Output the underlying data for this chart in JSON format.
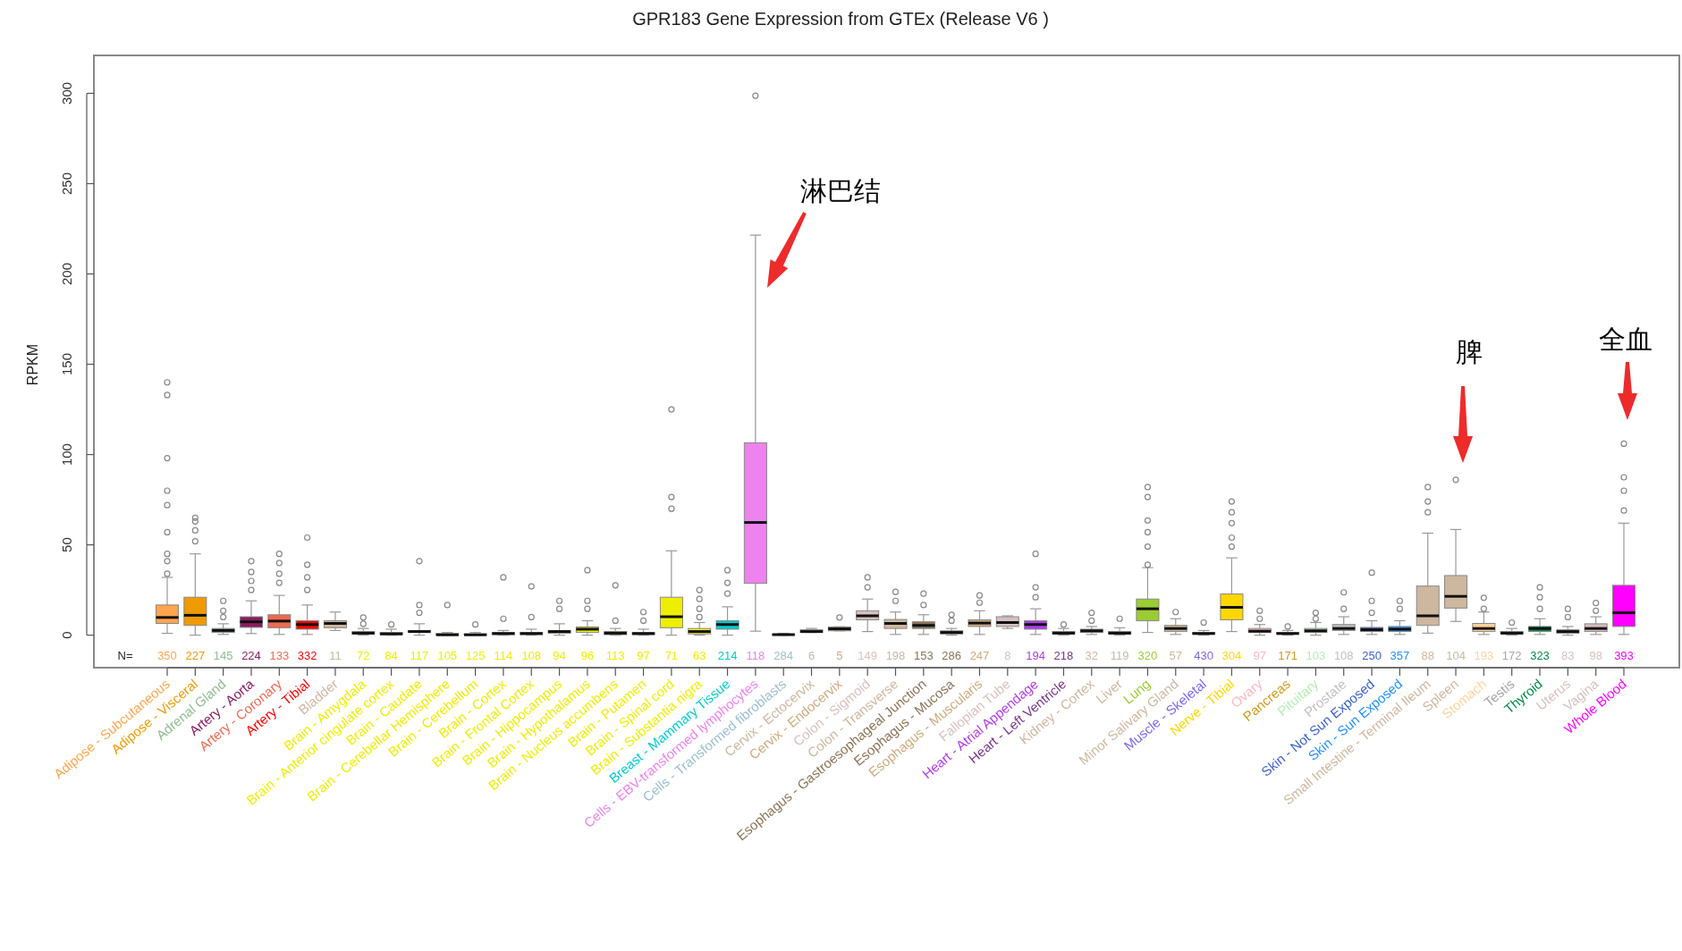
{
  "chart_data": {
    "type": "box",
    "title": "GPR183 Gene Expression from GTEx (Release  V6 )",
    "ylabel": "RPKM",
    "categories": [
      "Adipose - Subcutaneous",
      "Adipose - Visceral",
      "Adrenal Gland",
      "Artery - Aorta",
      "Artery - Coronary",
      "Artery - Tibial",
      "Bladder",
      "Brain - Amygdala",
      "Brain - Anterior cingulate cortex",
      "Brain - Caudate",
      "Brain - Cerebellar Hemisphere",
      "Brain - Cerebellum",
      "Brain - Cortex",
      "Brain - Frontal Cortex",
      "Brain - Hippocampus",
      "Brain - Hypothalamus",
      "Brain - Nucleus accumbens",
      "Brain - Putamen",
      "Brain - Spinal cord",
      "Brain - Substantia nigra",
      "Breast - Mammary Tissue",
      "Cells - EBV-transformed lymphocytes",
      "Cells - Transformed fibroblasts",
      "Cervix - Ectocervix",
      "Cervix - Endocervix",
      "Colon - Sigmoid",
      "Colon - Transverse",
      "Esophagus - Gastroesophageal Junction",
      "Esophagus - Mucosa",
      "Esophagus - Muscularis",
      "Fallopian Tube",
      "Heart - Atrial Appendage",
      "Heart - Left Ventricle",
      "Kidney - Cortex",
      "Liver",
      "Lung",
      "Minor Salivary Gland",
      "Muscle - Skeletal",
      "Nerve - Tibial",
      "Ovary",
      "Pancreas",
      "Pituitary",
      "Prostate",
      "Skin - Not Sun Exposed",
      "Skin - Sun Exposed",
      "Small Intestine - Terminal Ileum",
      "Spleen",
      "Stomach",
      "Testis",
      "Thyroid",
      "Uterus",
      "Vagina",
      "Whole Blood"
    ],
    "colors": [
      "#ffa54f",
      "#ee9a00",
      "#8fbc8f",
      "#8b1c62",
      "#ee6a50",
      "#ff0000",
      "#cdb79e",
      "#eeee00",
      "#eeee00",
      "#eeee00",
      "#eeee00",
      "#eeee00",
      "#eeee00",
      "#eeee00",
      "#eeee00",
      "#eeee00",
      "#eeee00",
      "#eeee00",
      "#eeee00",
      "#eeee00",
      "#00cdcd",
      "#ee82ee",
      "#9ac0cd",
      "#cdb79e",
      "#cdaa7d",
      "#d8bfbf",
      "#cdb79e",
      "#8b7355",
      "#8b7355",
      "#cdaa7d",
      "#d8bfbf",
      "#b23aee",
      "#7a378b",
      "#cdb79e",
      "#cdb79e",
      "#9acd32",
      "#cdb79e",
      "#7a67ee",
      "#ffd700",
      "#ffb6c1",
      "#cd9b1d",
      "#b4eeb4",
      "#c0c0c0",
      "#3a5fcd",
      "#1e90ff",
      "#cdb79e",
      "#cdb79e",
      "#ffd39b",
      "#a6a6a6",
      "#008b45",
      "#d8bfbf",
      "#d8bfbf",
      "#ff00ff"
    ],
    "boxes": [
      {
        "low": 1,
        "q1": 6.5,
        "median": 9.8,
        "q3": 16.7,
        "high": 32,
        "outliers": [
          34,
          41,
          45,
          57,
          72,
          80,
          98,
          133,
          140
        ]
      },
      {
        "low": 0,
        "q1": 5.4,
        "median": 11,
        "q3": 21,
        "high": 45,
        "outliers": [
          52,
          58,
          63,
          65
        ]
      },
      {
        "low": 0.4,
        "q1": 1.5,
        "median": 2.6,
        "q3": 3.7,
        "high": 6.3,
        "outliers": [
          10,
          13.5,
          19
        ]
      },
      {
        "low": 0.9,
        "q1": 4.3,
        "median": 7.4,
        "q3": 10.2,
        "high": 19,
        "outliers": [
          25,
          30,
          35,
          41
        ]
      },
      {
        "low": 0.4,
        "q1": 4.1,
        "median": 7.8,
        "q3": 11.3,
        "high": 22,
        "outliers": [
          29,
          34,
          40,
          45
        ]
      },
      {
        "low": 0.4,
        "q1": 3.3,
        "median": 5.9,
        "q3": 8,
        "high": 16.7,
        "outliers": [
          25,
          32,
          39,
          54
        ]
      },
      {
        "low": 2.6,
        "q1": 4.1,
        "median": 6.5,
        "q3": 8,
        "high": 12.8
      },
      {
        "low": 0,
        "q1": 0.7,
        "median": 1.1,
        "q3": 2,
        "high": 3.7,
        "outliers": [
          6.3,
          9.8
        ]
      },
      {
        "low": 0,
        "q1": 0.3,
        "median": 0.7,
        "q3": 1.5,
        "high": 3.3,
        "outliers": [
          5.9
        ]
      },
      {
        "low": 0,
        "q1": 1.5,
        "median": 2,
        "q3": 2.6,
        "high": 6.3,
        "outliers": [
          12.4,
          16.7,
          41
        ]
      },
      {
        "low": 0,
        "q1": 0,
        "median": 0.2,
        "q3": 0.9,
        "high": 1.5,
        "outliers": [
          16.7
        ]
      },
      {
        "low": 0,
        "q1": 0,
        "median": 0.2,
        "q3": 0.7,
        "high": 1.5,
        "outliers": [
          5.9
        ]
      },
      {
        "low": 0,
        "q1": 0.3,
        "median": 0.9,
        "q3": 1.5,
        "high": 2.6,
        "outliers": [
          9.1,
          32
        ]
      },
      {
        "low": 0,
        "q1": 0.3,
        "median": 0.9,
        "q3": 1.5,
        "high": 3.3,
        "outliers": [
          10,
          27
        ]
      },
      {
        "low": 0,
        "q1": 1.1,
        "median": 2,
        "q3": 2.6,
        "high": 6.3,
        "outliers": [
          14.6,
          19
        ]
      },
      {
        "low": 0,
        "q1": 1.5,
        "median": 3.3,
        "q3": 4.6,
        "high": 8,
        "outliers": [
          14.6,
          19,
          36
        ]
      },
      {
        "low": 0,
        "q1": 0.3,
        "median": 1.1,
        "q3": 2,
        "high": 3.7,
        "outliers": [
          8,
          27.6
        ]
      },
      {
        "low": 0,
        "q1": 0.3,
        "median": 0.9,
        "q3": 1.5,
        "high": 3.3,
        "outliers": [
          8,
          12.8
        ]
      },
      {
        "low": 0,
        "q1": 4.1,
        "median": 10.2,
        "q3": 21,
        "high": 46.7,
        "outliers": [
          70,
          76.5,
          125
        ]
      },
      {
        "low": 0,
        "q1": 0.7,
        "median": 2,
        "q3": 3.7,
        "high": 7,
        "outliers": [
          10,
          14.6,
          20,
          25
        ]
      },
      {
        "low": 0,
        "q1": 3.3,
        "median": 5.9,
        "q3": 8,
        "high": 15.7,
        "outliers": [
          23,
          29,
          36
        ]
      },
      {
        "low": 2.2,
        "q1": 28.7,
        "median": 62.4,
        "q3": 106.5,
        "high": 221.5,
        "outliers": [
          298.7
        ]
      },
      {
        "low": 0,
        "q1": 0,
        "median": 0.3,
        "q3": 0.6,
        "high": 1
      },
      {
        "low": 1.5,
        "q1": 1.5,
        "median": 2,
        "q3": 3,
        "high": 3.7
      },
      {
        "low": 2.4,
        "q1": 2.4,
        "median": 3.5,
        "q3": 4.6,
        "high": 4.6,
        "outliers": [
          9.8
        ]
      },
      {
        "low": 2,
        "q1": 8.5,
        "median": 10.7,
        "q3": 13.5,
        "high": 20,
        "outliers": [
          26.5,
          32
        ]
      },
      {
        "low": 0.4,
        "q1": 3.7,
        "median": 6.5,
        "q3": 8.7,
        "high": 12.8,
        "outliers": [
          19,
          24
        ]
      },
      {
        "low": 0.4,
        "q1": 3.7,
        "median": 5.4,
        "q3": 7.4,
        "high": 11.3,
        "outliers": [
          16.7,
          23
        ]
      },
      {
        "low": 0,
        "q1": 0.7,
        "median": 1.5,
        "q3": 2.4,
        "high": 3.7,
        "outliers": [
          8,
          11.3
        ]
      },
      {
        "low": 0.4,
        "q1": 4.8,
        "median": 6.7,
        "q3": 8.5,
        "high": 13.5,
        "outliers": [
          18,
          22
        ]
      },
      {
        "low": 3.7,
        "q1": 4.8,
        "median": 7,
        "q3": 10.2,
        "high": 10.7
      },
      {
        "low": 0.4,
        "q1": 3.3,
        "median": 5.9,
        "q3": 8,
        "high": 14.6,
        "outliers": [
          21,
          26.5,
          45
        ]
      },
      {
        "low": 0,
        "q1": 0.7,
        "median": 1.1,
        "q3": 2,
        "high": 3.7,
        "outliers": [
          5.9
        ]
      },
      {
        "low": 0.4,
        "q1": 1.5,
        "median": 2.4,
        "q3": 3.3,
        "high": 4.8,
        "outliers": [
          8,
          12.4
        ]
      },
      {
        "low": 0,
        "q1": 0.7,
        "median": 1.1,
        "q3": 2,
        "high": 4.1,
        "outliers": [
          9.1
        ]
      },
      {
        "low": 1.5,
        "q1": 8,
        "median": 14.6,
        "q3": 20,
        "high": 37.4,
        "outliers": [
          39,
          49,
          57,
          63.5,
          76.5,
          82
        ]
      },
      {
        "low": 0.4,
        "q1": 2,
        "median": 3.7,
        "q3": 5.4,
        "high": 9.1,
        "outliers": [
          12.8
        ]
      },
      {
        "low": 0,
        "q1": 0.7,
        "median": 0.9,
        "q3": 1.5,
        "high": 2.6,
        "outliers": [
          7
        ]
      },
      {
        "low": 2,
        "q1": 8.5,
        "median": 15.4,
        "q3": 22.8,
        "high": 42.8,
        "outliers": [
          49,
          54,
          62,
          68,
          74
        ]
      },
      {
        "low": 0,
        "q1": 1.5,
        "median": 2.2,
        "q3": 3.7,
        "high": 5.9,
        "outliers": [
          9.1,
          13.5
        ]
      },
      {
        "low": 0,
        "q1": 0.7,
        "median": 0.9,
        "q3": 1.5,
        "high": 2.6,
        "outliers": [
          4.8
        ]
      },
      {
        "low": 0,
        "q1": 1.5,
        "median": 2.4,
        "q3": 3.7,
        "high": 7,
        "outliers": [
          9.1,
          12.4
        ]
      },
      {
        "low": 0.4,
        "q1": 2.6,
        "median": 3.7,
        "q3": 5.9,
        "high": 10.2,
        "outliers": [
          14.6,
          23.7
        ]
      },
      {
        "low": 0.4,
        "q1": 2,
        "median": 3,
        "q3": 4.3,
        "high": 8,
        "outliers": [
          12.4,
          19,
          34.6
        ]
      },
      {
        "low": 0.4,
        "q1": 2,
        "median": 3.3,
        "q3": 4.8,
        "high": 8,
        "outliers": [
          14.6,
          19
        ]
      },
      {
        "low": 1.1,
        "q1": 5.4,
        "median": 10.7,
        "q3": 27.2,
        "high": 56.5,
        "outliers": [
          68,
          74,
          82
        ]
      },
      {
        "low": 7.6,
        "q1": 15,
        "median": 21.5,
        "q3": 33,
        "high": 58.5,
        "outliers": [
          86
        ]
      },
      {
        "low": 0.4,
        "q1": 2,
        "median": 3.7,
        "q3": 6.5,
        "high": 12.8,
        "outliers": [
          14.6,
          20.7
        ]
      },
      {
        "low": 0,
        "q1": 0.7,
        "median": 1.1,
        "q3": 2,
        "high": 3.7,
        "outliers": [
          7
        ]
      },
      {
        "low": 0.4,
        "q1": 2,
        "median": 3.7,
        "q3": 4.8,
        "high": 9.1,
        "outliers": [
          14.6,
          21,
          26.5
        ]
      },
      {
        "low": 0,
        "q1": 1.1,
        "median": 2,
        "q3": 3,
        "high": 4.8,
        "outliers": [
          10,
          14.6
        ]
      },
      {
        "low": 0.4,
        "q1": 2,
        "median": 3.7,
        "q3": 6.3,
        "high": 10.2,
        "outliers": [
          13.5,
          17.8
        ]
      },
      {
        "low": 0.4,
        "q1": 4.8,
        "median": 12.4,
        "q3": 27.6,
        "high": 62,
        "outliers": [
          69,
          80,
          87.4,
          106
        ]
      }
    ],
    "value_labels": [
      "350",
      "227",
      "145",
      "224",
      "133",
      "332",
      "11",
      "72",
      "84",
      "117",
      "105",
      "125",
      "114",
      "108",
      "94",
      "96",
      "113",
      "97",
      "71",
      "63",
      "214",
      "118",
      "284",
      "6",
      "5",
      "149",
      "198",
      "153",
      "286",
      "247",
      "8",
      "194",
      "218",
      "32",
      "119",
      "320",
      "57",
      "430",
      "304",
      "97",
      "171",
      "103",
      "108",
      "250",
      "357",
      "88",
      "104",
      "193",
      "172",
      "323",
      "83",
      "98",
      "393"
    ],
    "ylim": [
      -18,
      321
    ],
    "yticks": [
      0,
      50,
      100,
      150,
      200,
      250,
      300
    ],
    "annotations": [
      "N=",
      "淋巴结",
      "脾",
      "全血"
    ]
  }
}
